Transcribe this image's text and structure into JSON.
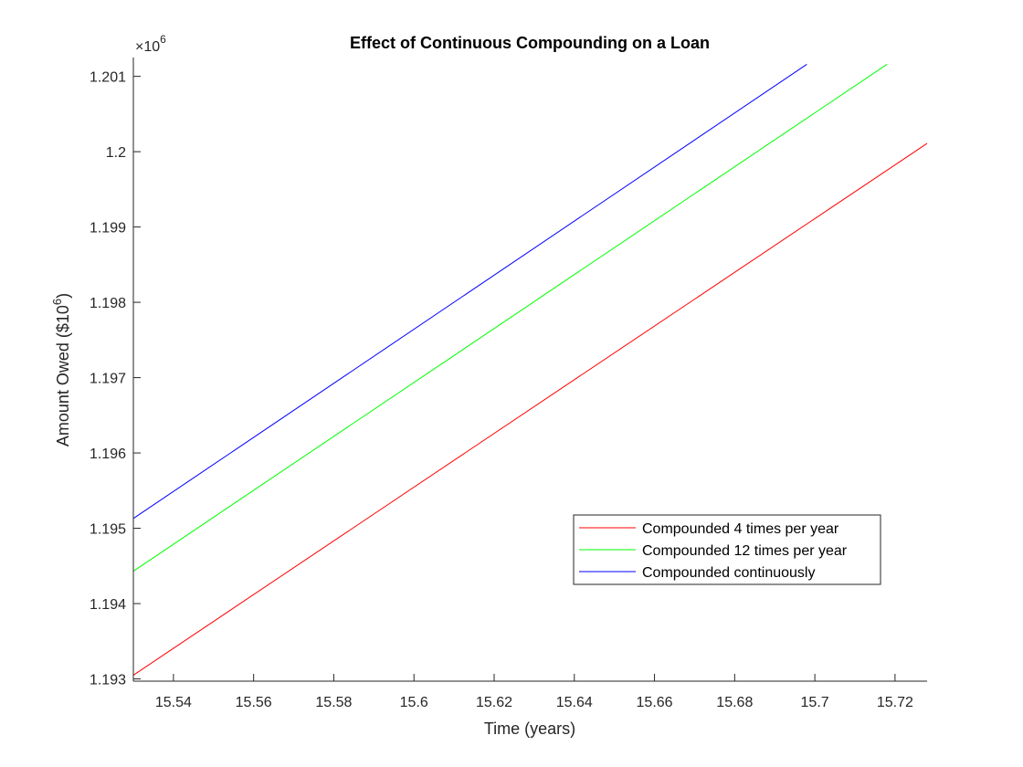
{
  "chart_data": {
    "type": "line",
    "title": "Effect of Continuous Compounding on a Loan",
    "xlabel": "Time (years)",
    "ylabel_main": "Amount Owed ($10",
    "ylabel_sup": "6",
    "ylabel_close": ")",
    "y_exponent_base": "×10",
    "y_exponent_sup": "6",
    "xlim": [
      15.53,
      15.728
    ],
    "ylim": [
      1.19297,
      1.20125
    ],
    "x_ticks": [
      15.54,
      15.56,
      15.58,
      15.6,
      15.62,
      15.64,
      15.66,
      15.68,
      15.7,
      15.72
    ],
    "x_tick_labels": [
      "15.54",
      "15.56",
      "15.58",
      "15.6",
      "15.62",
      "15.64",
      "15.66",
      "15.68",
      "15.7",
      "15.72"
    ],
    "y_ticks": [
      1.193,
      1.194,
      1.195,
      1.196,
      1.197,
      1.198,
      1.199,
      1.2,
      1.201
    ],
    "y_tick_labels": [
      "1.193",
      "1.194",
      "1.195",
      "1.196",
      "1.197",
      "1.198",
      "1.199",
      "1.2",
      "1.201"
    ],
    "grid": false,
    "legend_position": "lower-right",
    "series": [
      {
        "name": "Compounded 4 times per year",
        "color": "#ff0000",
        "x": [
          15.53,
          15.728
        ],
        "y": [
          1.19305,
          1.20011
        ]
      },
      {
        "name": "Compounded 12 times per year",
        "color": "#00ff00",
        "x": [
          15.53,
          15.718
        ],
        "y": [
          1.19443,
          1.20116
        ]
      },
      {
        "name": "Compounded continuously",
        "color": "#0000ff",
        "x": [
          15.53,
          15.698
        ],
        "y": [
          1.19513,
          1.20116
        ]
      }
    ]
  }
}
